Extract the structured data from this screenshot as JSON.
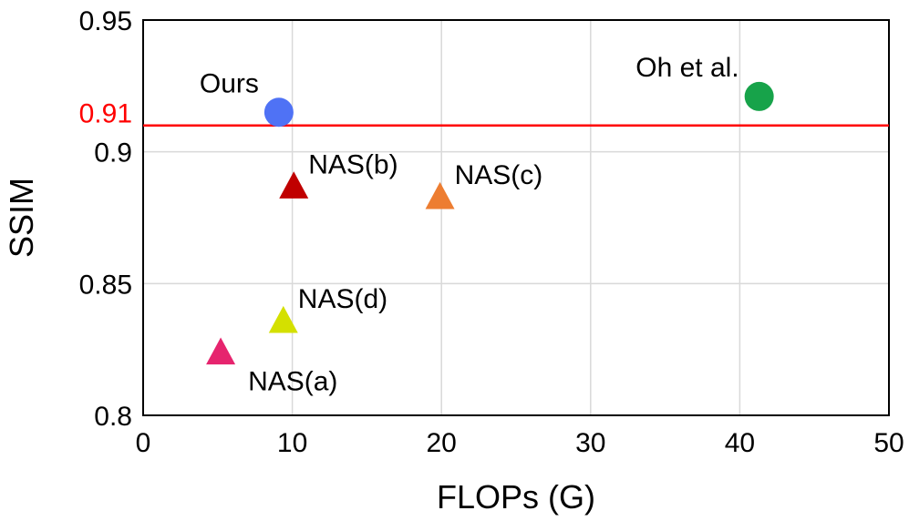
{
  "chart_data": {
    "type": "scatter",
    "xlabel": "FLOPs (G)",
    "ylabel": "SSIM",
    "xlim": [
      0,
      50
    ],
    "ylim": [
      0.8,
      0.95
    ],
    "xticks": [
      0,
      10,
      20,
      30,
      40,
      50
    ],
    "xtick_labels": [
      "0",
      "10",
      "20",
      "30",
      "40",
      "50"
    ],
    "yticks": [
      0.8,
      0.85,
      0.9,
      0.95
    ],
    "ytick_labels": [
      "0.8",
      "0.85",
      "0.9",
      "0.95"
    ],
    "grid": true,
    "reference_line": {
      "y": 0.91,
      "label": "0.91",
      "color": "#ff0000"
    },
    "points": [
      {
        "label": "Ours",
        "x": 9.1,
        "y": 0.915,
        "marker": "circle",
        "color": "#4f72f5",
        "label_pos": "above-left"
      },
      {
        "label": "Oh et al.",
        "x": 41.3,
        "y": 0.921,
        "marker": "circle",
        "color": "#17a34a",
        "label_pos": "above-left"
      },
      {
        "label": "NAS(a)",
        "x": 5.2,
        "y": 0.824,
        "marker": "triangle",
        "color": "#e6246e",
        "label_pos": "below-right"
      },
      {
        "label": "NAS(b)",
        "x": 10.1,
        "y": 0.887,
        "marker": "triangle",
        "color": "#c00000",
        "label_pos": "above-right"
      },
      {
        "label": "NAS(c)",
        "x": 19.9,
        "y": 0.883,
        "marker": "triangle",
        "color": "#ed7d31",
        "label_pos": "above-right"
      },
      {
        "label": "NAS(d)",
        "x": 9.4,
        "y": 0.836,
        "marker": "triangle",
        "color": "#d4e000",
        "label_pos": "above-right"
      }
    ]
  }
}
